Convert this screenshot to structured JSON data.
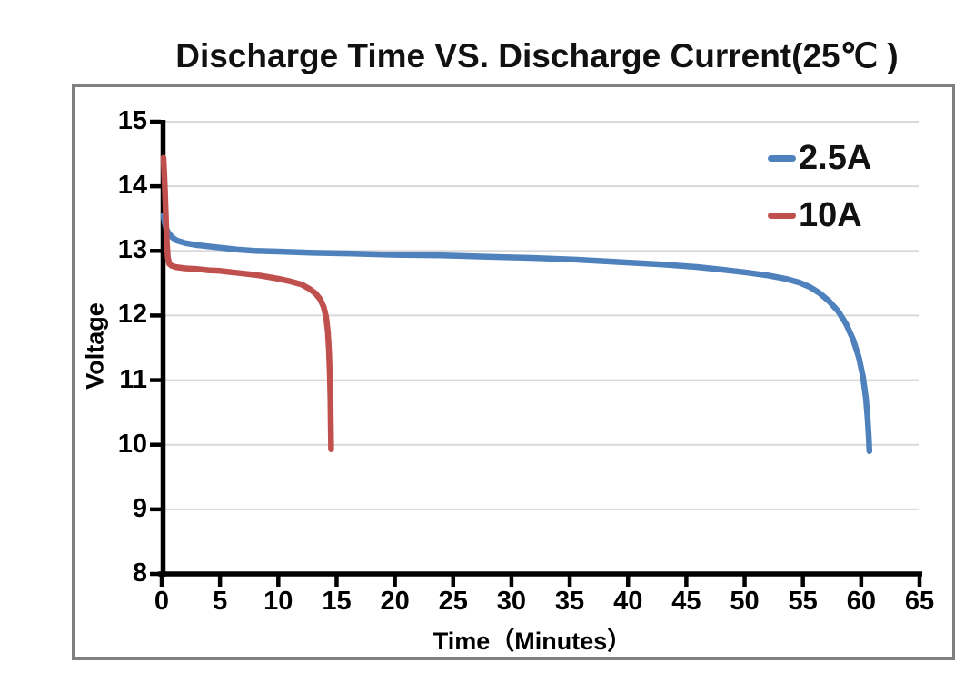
{
  "chart_data": {
    "type": "line",
    "title": "Discharge Time VS. Discharge Current(25℃ )",
    "xlabel": "Time（Minutes）",
    "ylabel": "Voltage",
    "xlim": [
      0,
      65
    ],
    "ylim": [
      8,
      15
    ],
    "xticks": [
      0,
      5,
      10,
      15,
      20,
      25,
      30,
      35,
      40,
      45,
      50,
      55,
      60,
      65
    ],
    "yticks": [
      8,
      9,
      10,
      11,
      12,
      13,
      14,
      15
    ],
    "grid": "horizontal-only",
    "legend_position": "inside-upper-right",
    "colors": {
      "axis": "#000000",
      "gridline": "#d9d9d9",
      "frame_border": "#7f7f7f",
      "background": "#ffffff",
      "series_blue": "#4f81bd",
      "series_red": "#c0504d"
    },
    "series": [
      {
        "name": "2.5A",
        "color": "#4f81bd",
        "points": [
          [
            0.15,
            13.55
          ],
          [
            0.25,
            13.44
          ],
          [
            0.4,
            13.34
          ],
          [
            0.6,
            13.27
          ],
          [
            0.9,
            13.21
          ],
          [
            1.3,
            13.16
          ],
          [
            2,
            13.12
          ],
          [
            3,
            13.09
          ],
          [
            4,
            13.07
          ],
          [
            5,
            13.05
          ],
          [
            6.5,
            13.02
          ],
          [
            8,
            13.0
          ],
          [
            10,
            12.99
          ],
          [
            13,
            12.97
          ],
          [
            16,
            12.96
          ],
          [
            20,
            12.94
          ],
          [
            24,
            12.93
          ],
          [
            28,
            12.91
          ],
          [
            32,
            12.89
          ],
          [
            36,
            12.86
          ],
          [
            40,
            12.82
          ],
          [
            43,
            12.79
          ],
          [
            46,
            12.75
          ],
          [
            48,
            12.71
          ],
          [
            50,
            12.67
          ],
          [
            52,
            12.62
          ],
          [
            53.5,
            12.57
          ],
          [
            54.7,
            12.51
          ],
          [
            55.6,
            12.44
          ],
          [
            56.4,
            12.35
          ],
          [
            57.2,
            12.23
          ],
          [
            58,
            12.07
          ],
          [
            58.7,
            11.87
          ],
          [
            59.3,
            11.63
          ],
          [
            59.8,
            11.35
          ],
          [
            60.15,
            11.05
          ],
          [
            60.4,
            10.72
          ],
          [
            60.55,
            10.4
          ],
          [
            60.65,
            10.1
          ],
          [
            60.7,
            9.9
          ]
        ]
      },
      {
        "name": "10A",
        "color": "#c0504d",
        "points": [
          [
            0.15,
            14.44
          ],
          [
            0.2,
            14.25
          ],
          [
            0.27,
            13.95
          ],
          [
            0.35,
            13.55
          ],
          [
            0.43,
            13.15
          ],
          [
            0.52,
            12.9
          ],
          [
            0.65,
            12.8
          ],
          [
            0.85,
            12.77
          ],
          [
            1.2,
            12.75
          ],
          [
            2,
            12.73
          ],
          [
            3,
            12.72
          ],
          [
            4,
            12.7
          ],
          [
            5,
            12.69
          ],
          [
            6,
            12.67
          ],
          [
            7,
            12.65
          ],
          [
            8,
            12.63
          ],
          [
            9,
            12.6
          ],
          [
            10,
            12.57
          ],
          [
            11,
            12.53
          ],
          [
            12,
            12.48
          ],
          [
            12.7,
            12.41
          ],
          [
            13.2,
            12.34
          ],
          [
            13.6,
            12.25
          ],
          [
            13.9,
            12.13
          ],
          [
            14.1,
            11.98
          ],
          [
            14.25,
            11.75
          ],
          [
            14.35,
            11.45
          ],
          [
            14.42,
            11.1
          ],
          [
            14.47,
            10.72
          ],
          [
            14.5,
            10.35
          ],
          [
            14.52,
            10.05
          ],
          [
            14.53,
            9.93
          ]
        ]
      }
    ]
  }
}
